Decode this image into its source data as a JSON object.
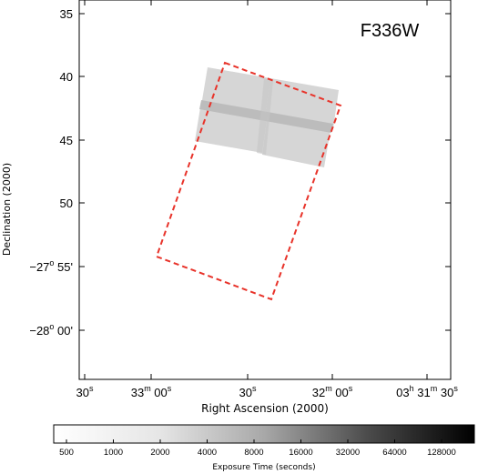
{
  "chart_data": {
    "type": "heatmap",
    "title": "F336W",
    "xlabel": "Right Ascension (2000)",
    "ylabel": "Declination (2000)",
    "x_ticks": [
      {
        "main": "30",
        "u1": "s",
        "mid": "",
        "u2": "",
        "rest": "",
        "u3": ""
      },
      {
        "main": "33",
        "u1": "m",
        "mid": " 00",
        "u2": "s",
        "rest": "",
        "u3": ""
      },
      {
        "main": "30",
        "u1": "s",
        "mid": "",
        "u2": "",
        "rest": "",
        "u3": ""
      },
      {
        "main": "32",
        "u1": "m",
        "mid": " 00",
        "u2": "s",
        "rest": "",
        "u3": ""
      },
      {
        "main": "03",
        "u1": "h",
        "mid": " 31",
        "u2": "m",
        "rest": " 30",
        "u3": "s"
      }
    ],
    "y_ticks": [
      {
        "main": "35",
        "u1": "",
        "rest": ""
      },
      {
        "main": "40",
        "u1": "",
        "rest": ""
      },
      {
        "main": "45",
        "u1": "",
        "rest": ""
      },
      {
        "main": "50",
        "u1": "",
        "rest": ""
      },
      {
        "main": "−27",
        "u1": "o",
        "rest": " 55'"
      },
      {
        "main": "−28",
        "u1": "o",
        "rest": " 00'"
      }
    ],
    "colorbar": {
      "label": "Exposure Time (seconds)",
      "ticks": [
        "500",
        "1000",
        "2000",
        "4000",
        "8000",
        "16000",
        "32000",
        "64000",
        "128000"
      ],
      "scale": "log",
      "colormap": "white-to-black"
    },
    "footprint_color": "#e8332a",
    "exposure_color": "#c8c8c8"
  }
}
